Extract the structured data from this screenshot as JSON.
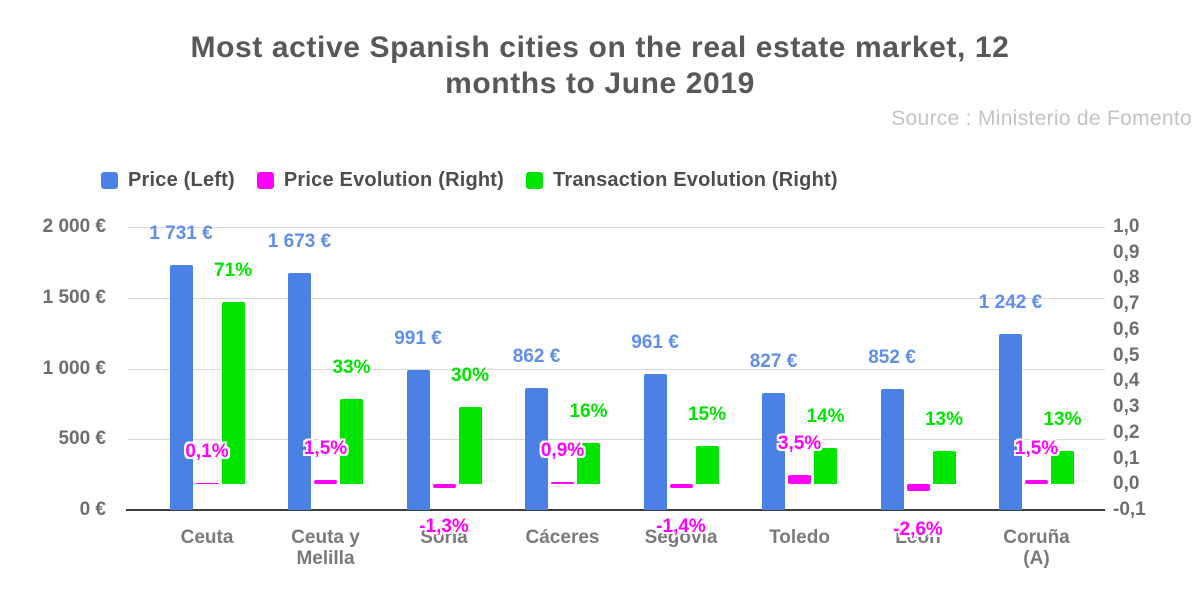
{
  "header": {
    "title_line1": "Most active Spanish cities on the real estate market, 12",
    "title_line2": "months to June 2019",
    "source_note": "Source : Ministerio de Fomento"
  },
  "chart_data": {
    "type": "bar",
    "title": "Most active Spanish cities on the real estate market, 12 months to June 2019",
    "source": "Source : Ministerio de Fomento",
    "legend_position": "top",
    "grid": true,
    "categories": [
      "Ceuta",
      "Ceuta y Melilla",
      "Soria",
      "Cáceres",
      "Segovia",
      "Toledo",
      "León",
      "Coruña (A)"
    ],
    "series": [
      {
        "name": "Price (Left)",
        "axis": "left",
        "unit": "€",
        "color": "#4b80e4",
        "values": [
          1731,
          1673,
          991,
          862,
          961,
          827,
          852,
          1242
        ],
        "labels": [
          "1 731 €",
          "1 673 €",
          "991 €",
          "862 €",
          "961 €",
          "827 €",
          "852 €",
          "1 242 €"
        ]
      },
      {
        "name": "Price Evolution (Right)",
        "axis": "right",
        "unit": "%",
        "color": "#ff00ff",
        "values": [
          0.1,
          1.5,
          -1.3,
          0.9,
          -1.4,
          3.5,
          -2.6,
          1.5
        ],
        "labels": [
          "0,1%",
          "1,5%",
          "-1,3%",
          "0,9%",
          "-1,4%",
          "3,5%",
          "-2,6%",
          "1,5%"
        ]
      },
      {
        "name": "Transaction Evolution (Right)",
        "axis": "right",
        "unit": "%",
        "color": "#00e400",
        "values": [
          71,
          33,
          30,
          16,
          15,
          14,
          13,
          13
        ],
        "labels": [
          "71%",
          "33%",
          "30%",
          "16%",
          "15%",
          "14%",
          "13%",
          "13%"
        ]
      }
    ],
    "left_axis": {
      "min": 0,
      "max": 2000,
      "ticks": [
        "2 000 €",
        "1 500 €",
        "1 000 €",
        "500 €",
        "0 €"
      ]
    },
    "right_axis": {
      "min": -0.1,
      "max": 1.0,
      "ticks": [
        "1,0",
        "0,9",
        "0,8",
        "0,7",
        "0,6",
        "0,5",
        "0,4",
        "0,3",
        "0,2",
        "0,1",
        "0,0",
        "-0,1"
      ]
    }
  },
  "colors": {
    "price": "#4b80e4",
    "price_label": "#5f8fea",
    "price_evolution": "#ff00ff",
    "transaction_evolution": "#00e400",
    "grid": "#d9d9d9",
    "axis_line": "#3c3c3c",
    "axis_text": "#6e6e6e",
    "category_text": "#7a7a7a",
    "title_text": "#58585a",
    "source_text": "#c3c3c3",
    "legend_text": "#4d4d4d",
    "background": "#ffffff"
  }
}
